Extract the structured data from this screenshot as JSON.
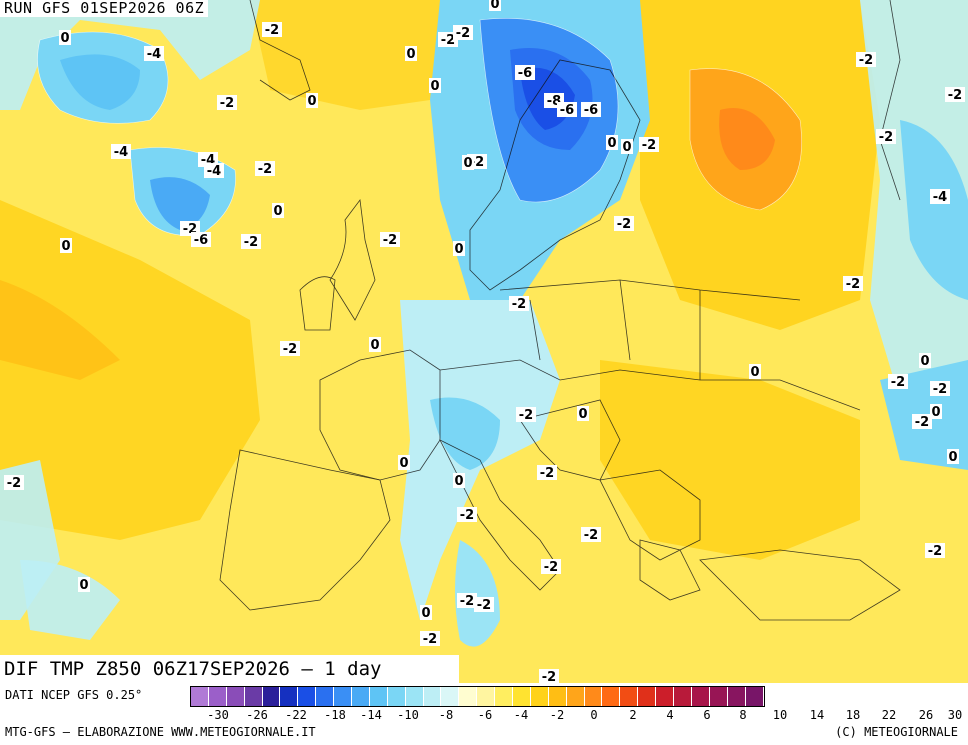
{
  "header": {
    "run": "RUN GFS 01SEP2026 06Z"
  },
  "map": {
    "title": "DIF TMP Z850 06Z17SEP2026 — 1 day",
    "labels": [
      "0",
      "-4",
      "-2",
      "0",
      "0",
      "-2",
      "-4",
      "0",
      "-6",
      "-8",
      "-6",
      "-6",
      "-2",
      "0",
      "-2",
      "-4",
      "-4",
      "-2",
      "0",
      "-2",
      "-6",
      "-2",
      "0",
      "-2",
      "0",
      "-2",
      "0",
      "-2",
      "-2",
      "-2",
      "0",
      "0",
      "0",
      "-2",
      "0",
      "-2",
      "-2",
      "0",
      "0",
      "-2",
      "0",
      "-4",
      "-2",
      "-2",
      "-2",
      "-2",
      "0",
      "0",
      "-2",
      "-2",
      "0",
      "0",
      "-2",
      "-2",
      "-2",
      "-2",
      "0",
      "-2",
      "-2",
      "-2",
      "-2",
      "-2"
    ]
  },
  "legend": {
    "source": "DATI NCEP GFS 0.25°",
    "colors": [
      "#b07ad6",
      "#9b5fc9",
      "#8a4db8",
      "#6a3ba6",
      "#2b1f9a",
      "#1530c0",
      "#1a4fe6",
      "#2a70f0",
      "#3a8ff5",
      "#4aaaf5",
      "#5ec4f5",
      "#7ad6f5",
      "#9be4f5",
      "#bdeef5",
      "#daf7f7",
      "#fffdd0",
      "#fff5a0",
      "#ffee60",
      "#ffe330",
      "#ffd21a",
      "#ffbe14",
      "#ffa51a",
      "#ff8a1a",
      "#ff6a14",
      "#f24d14",
      "#e0301a",
      "#cc1e2a",
      "#b81a3a",
      "#a8154a",
      "#981555",
      "#881560",
      "#781568"
    ],
    "ticks": [
      "-30",
      "-26",
      "-22",
      "-18",
      "-14",
      "-10",
      "-8",
      "-6",
      "-4",
      "-2",
      "0",
      "2",
      "4",
      "6",
      "8",
      "10",
      "14",
      "18",
      "22",
      "26",
      "30"
    ]
  },
  "footer": {
    "left": "MTG-GFS — ELABORAZIONE WWW.METEOGIORNALE.IT",
    "right": "(C) METEOGIORNALE"
  }
}
